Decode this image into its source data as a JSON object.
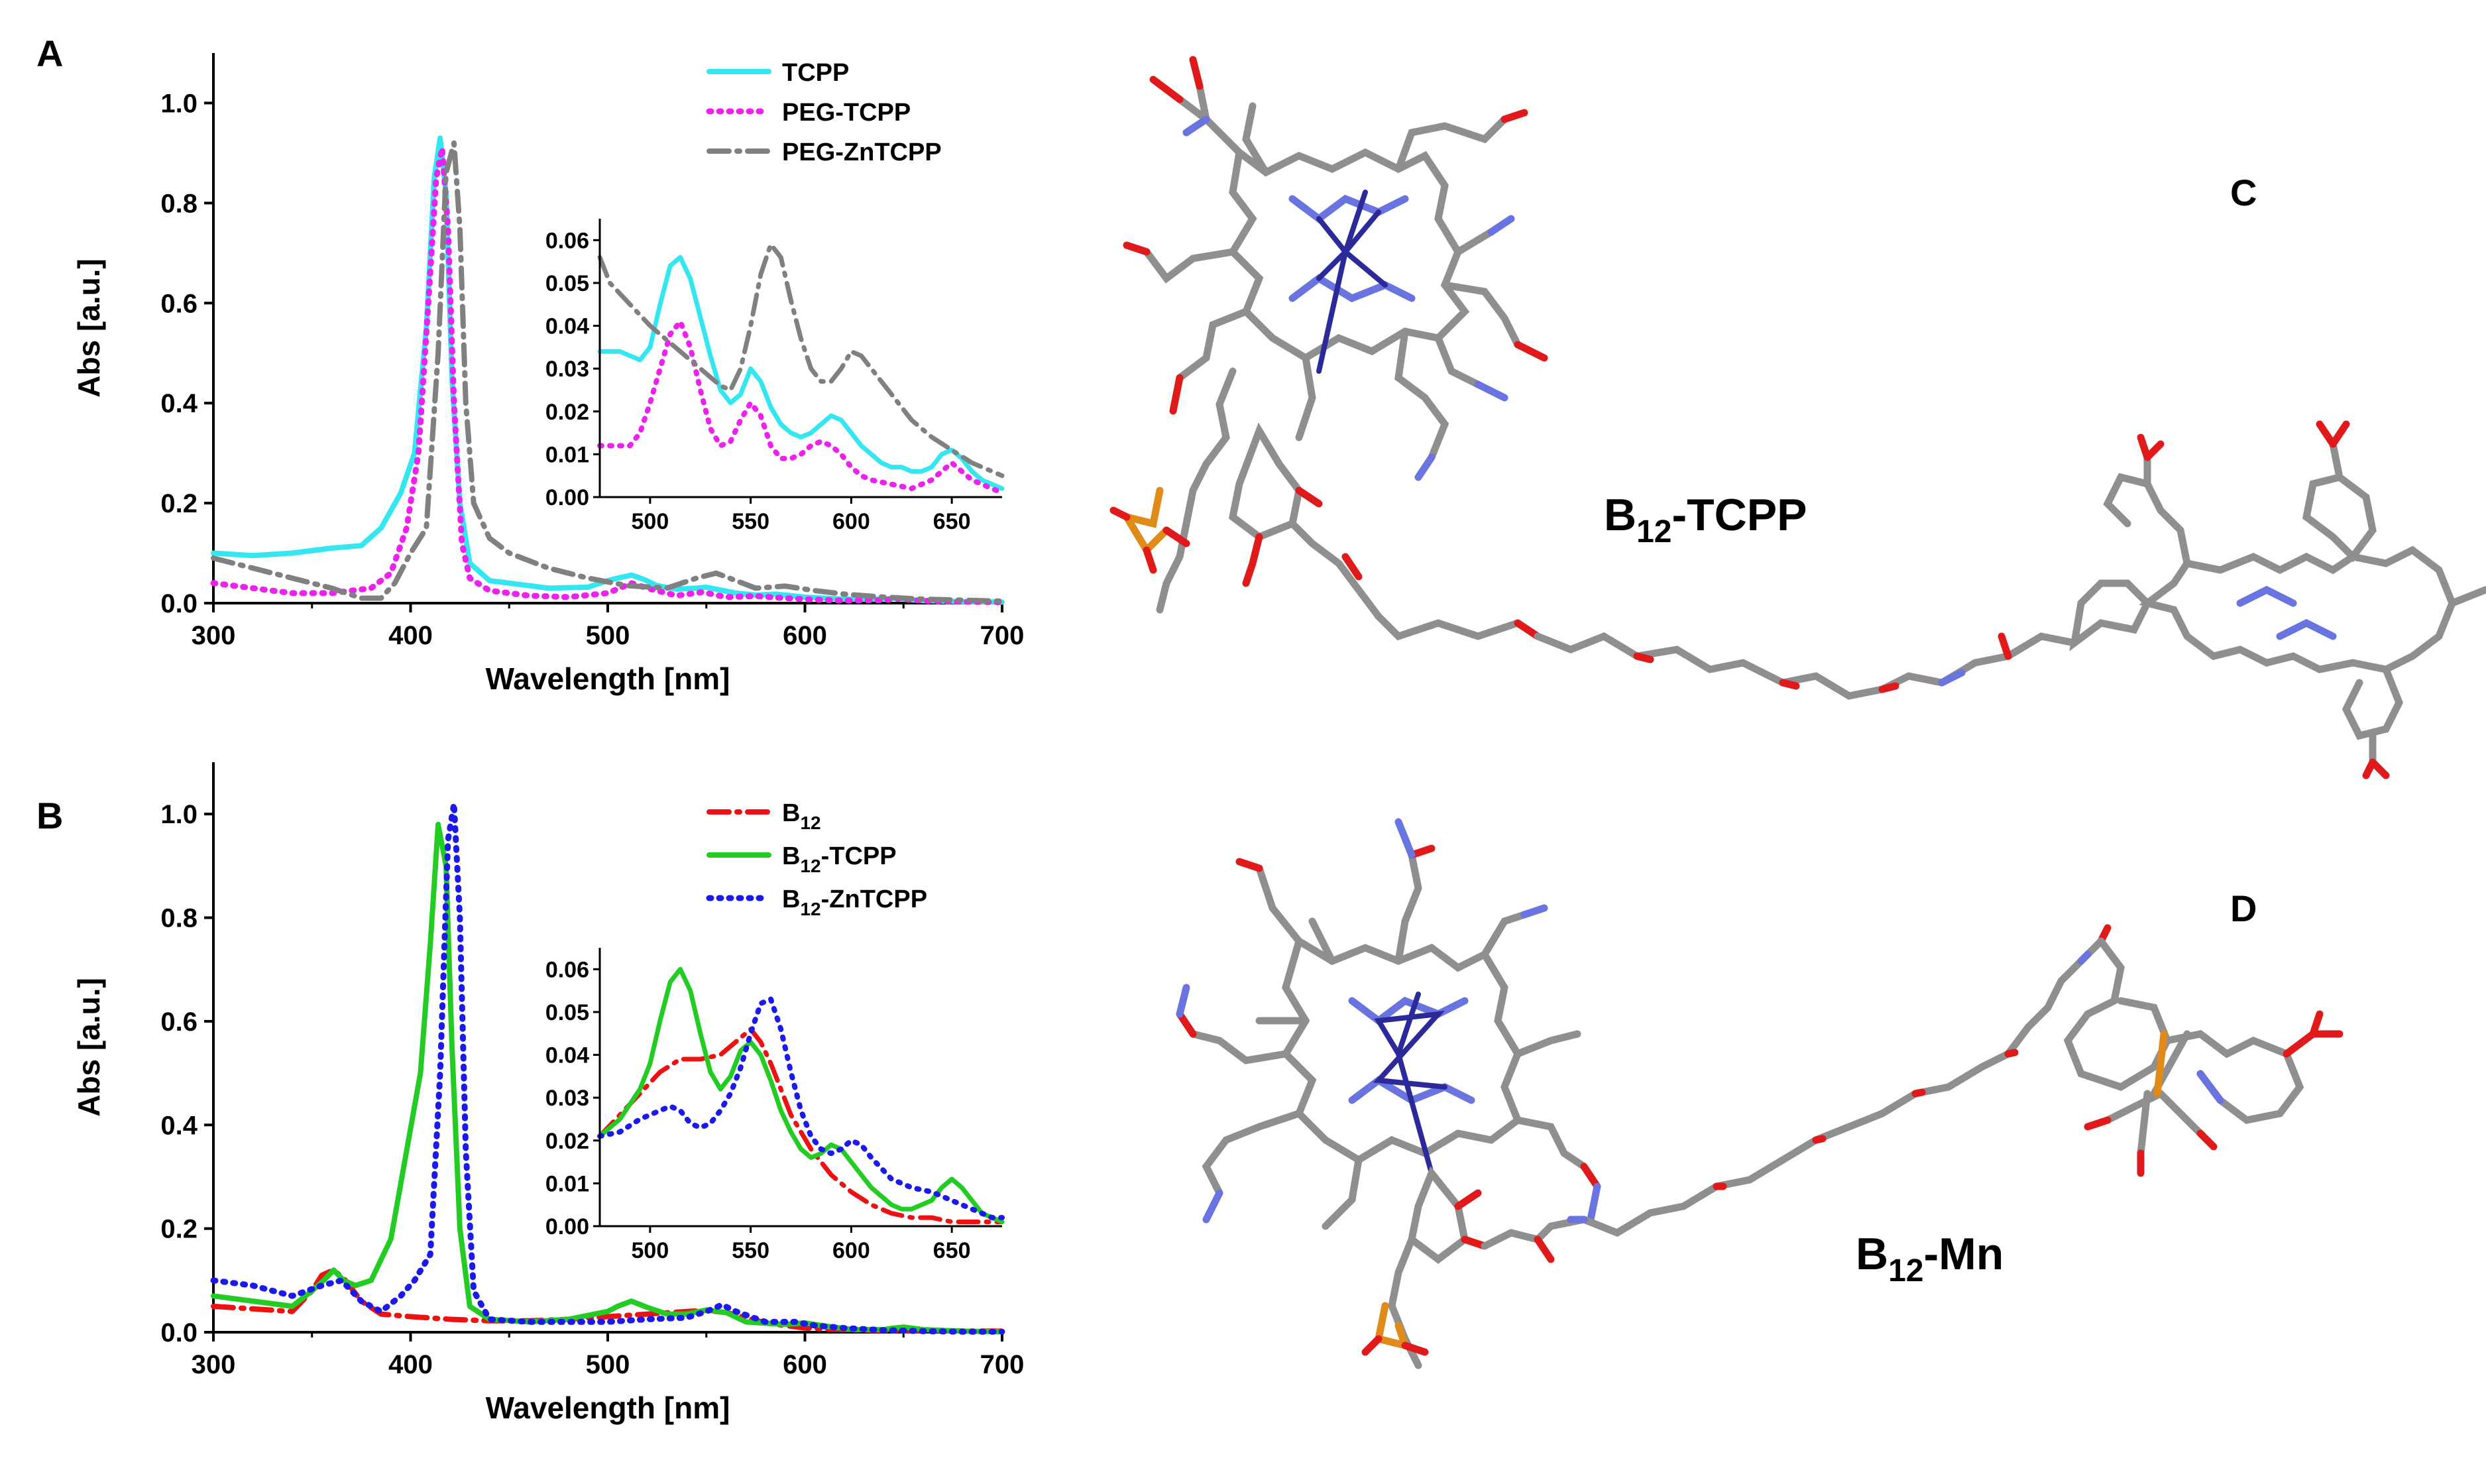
{
  "panels": {
    "A": "A",
    "B": "B",
    "C": "C",
    "D": "D"
  },
  "molecules": {
    "c_label": "B12-TCPP",
    "d_label": "B12-Mn"
  },
  "colors": {
    "TCPP": "#33e6f0",
    "PEG-TCPP": "#ee22ee",
    "PEG-ZnTCPP": "#808080",
    "B12": "#ee1111",
    "B12-TCPP": "#22cc22",
    "B12-ZnTCPP": "#1a1aee"
  },
  "chart_data": [
    {
      "id": "A",
      "type": "line",
      "xlabel": "Wavelength [nm]",
      "ylabel": "Abs [a.u.]",
      "xlim": [
        300,
        700
      ],
      "ylim": [
        0,
        1.1
      ],
      "xticks": [
        300,
        400,
        500,
        600,
        700
      ],
      "yticks": [
        0.0,
        0.2,
        0.4,
        0.6,
        0.8,
        1.0
      ],
      "legend_position": "top-right",
      "series": [
        {
          "name": "TCPP",
          "style": "solid",
          "color": "#33e6f0",
          "x": [
            300,
            320,
            340,
            360,
            375,
            385,
            395,
            402,
            408,
            412,
            415,
            418,
            421,
            425,
            430,
            440,
            450,
            470,
            490,
            500,
            505,
            512,
            518,
            525,
            535,
            545,
            550,
            555,
            565,
            575,
            585,
            590,
            600,
            620,
            640,
            645,
            650,
            660,
            680,
            700
          ],
          "y": [
            0.1,
            0.095,
            0.1,
            0.11,
            0.115,
            0.15,
            0.22,
            0.3,
            0.55,
            0.85,
            0.93,
            0.82,
            0.45,
            0.2,
            0.08,
            0.045,
            0.04,
            0.03,
            0.032,
            0.045,
            0.05,
            0.056,
            0.048,
            0.035,
            0.028,
            0.03,
            0.032,
            0.028,
            0.02,
            0.016,
            0.018,
            0.016,
            0.012,
            0.008,
            0.008,
            0.01,
            0.008,
            0.005,
            0.003,
            0.002
          ]
        },
        {
          "name": "PEG-TCPP",
          "style": "dotted",
          "color": "#ee22ee",
          "x": [
            300,
            320,
            340,
            360,
            380,
            390,
            398,
            404,
            409,
            413,
            416,
            419,
            422,
            426,
            430,
            440,
            460,
            480,
            500,
            512,
            520,
            535,
            548,
            560,
            575,
            590,
            605,
            620,
            640,
            648,
            655,
            670,
            700
          ],
          "y": [
            0.04,
            0.03,
            0.02,
            0.02,
            0.03,
            0.06,
            0.15,
            0.3,
            0.6,
            0.85,
            0.91,
            0.75,
            0.4,
            0.12,
            0.05,
            0.025,
            0.015,
            0.012,
            0.02,
            0.04,
            0.03,
            0.015,
            0.022,
            0.012,
            0.014,
            0.01,
            0.007,
            0.005,
            0.006,
            0.009,
            0.006,
            0.003,
            0.002
          ]
        },
        {
          "name": "PEG-ZnTCPP",
          "style": "dashdot",
          "color": "#808080",
          "x": [
            300,
            330,
            360,
            375,
            385,
            392,
            400,
            408,
            414,
            418,
            422,
            425,
            428,
            432,
            440,
            450,
            470,
            490,
            510,
            530,
            545,
            555,
            565,
            575,
            590,
            605,
            620,
            640,
            660,
            680,
            700
          ],
          "y": [
            0.09,
            0.06,
            0.03,
            0.01,
            0.01,
            0.04,
            0.1,
            0.15,
            0.5,
            0.86,
            0.92,
            0.75,
            0.4,
            0.2,
            0.13,
            0.1,
            0.07,
            0.05,
            0.035,
            0.03,
            0.05,
            0.06,
            0.045,
            0.03,
            0.034,
            0.025,
            0.018,
            0.012,
            0.008,
            0.006,
            0.004
          ]
        }
      ],
      "inset": {
        "xlim": [
          475,
          675
        ],
        "ylim": [
          0,
          0.065
        ],
        "xticks": [
          500,
          550,
          600,
          650
        ],
        "yticks": [
          0.0,
          0.01,
          0.02,
          0.03,
          0.04,
          0.05,
          0.06
        ],
        "series": [
          {
            "name": "TCPP",
            "x": [
              475,
              485,
              495,
              500,
              505,
              510,
              515,
              520,
              525,
              530,
              535,
              540,
              545,
              550,
              555,
              560,
              565,
              570,
              575,
              580,
              585,
              590,
              595,
              600,
              605,
              610,
              615,
              620,
              625,
              630,
              635,
              640,
              645,
              650,
              655,
              660,
              665,
              670,
              675
            ],
            "y": [
              0.034,
              0.034,
              0.032,
              0.035,
              0.045,
              0.054,
              0.056,
              0.051,
              0.042,
              0.033,
              0.025,
              0.022,
              0.024,
              0.03,
              0.027,
              0.021,
              0.017,
              0.015,
              0.014,
              0.015,
              0.017,
              0.019,
              0.018,
              0.015,
              0.012,
              0.01,
              0.008,
              0.007,
              0.007,
              0.006,
              0.006,
              0.007,
              0.01,
              0.011,
              0.009,
              0.006,
              0.004,
              0.003,
              0.002
            ]
          },
          {
            "name": "PEG-TCPP",
            "x": [
              475,
              480,
              490,
              495,
              500,
              505,
              510,
              515,
              520,
              525,
              530,
              535,
              540,
              545,
              550,
              555,
              560,
              565,
              570,
              575,
              580,
              585,
              590,
              595,
              600,
              605,
              610,
              620,
              630,
              640,
              645,
              650,
              655,
              660,
              670,
              675
            ],
            "y": [
              0.012,
              0.012,
              0.012,
              0.015,
              0.022,
              0.03,
              0.038,
              0.041,
              0.035,
              0.025,
              0.016,
              0.012,
              0.013,
              0.018,
              0.022,
              0.019,
              0.012,
              0.009,
              0.009,
              0.01,
              0.012,
              0.013,
              0.012,
              0.01,
              0.007,
              0.005,
              0.004,
              0.003,
              0.002,
              0.004,
              0.006,
              0.008,
              0.006,
              0.004,
              0.002,
              0.001
            ]
          },
          {
            "name": "PEG-ZnTCPP",
            "x": [
              475,
              480,
              490,
              500,
              510,
              520,
              530,
              535,
              540,
              545,
              550,
              555,
              560,
              565,
              570,
              575,
              580,
              585,
              590,
              595,
              600,
              605,
              610,
              620,
              630,
              640,
              650,
              660,
              670,
              675
            ],
            "y": [
              0.056,
              0.05,
              0.045,
              0.04,
              0.036,
              0.032,
              0.028,
              0.026,
              0.025,
              0.03,
              0.04,
              0.052,
              0.059,
              0.056,
              0.046,
              0.037,
              0.03,
              0.027,
              0.027,
              0.03,
              0.034,
              0.033,
              0.03,
              0.024,
              0.018,
              0.014,
              0.011,
              0.008,
              0.006,
              0.005
            ]
          }
        ]
      }
    },
    {
      "id": "B",
      "type": "line",
      "xlabel": "Wavelength [nm]",
      "ylabel": "Abs [a.u.]",
      "xlim": [
        300,
        700
      ],
      "ylim": [
        0,
        1.1
      ],
      "xticks": [
        300,
        400,
        500,
        600,
        700
      ],
      "yticks": [
        0.0,
        0.2,
        0.4,
        0.6,
        0.8,
        1.0
      ],
      "legend_position": "top-right",
      "series": [
        {
          "name": "B12",
          "label_base": "B",
          "label_sub": "12",
          "label_rest": "",
          "style": "dashdot",
          "color": "#ee1111",
          "x": [
            300,
            320,
            340,
            350,
            355,
            361,
            367,
            375,
            385,
            400,
            420,
            440,
            460,
            480,
            500,
            520,
            540,
            550,
            560,
            580,
            600,
            620,
            650,
            700
          ],
          "y": [
            0.05,
            0.045,
            0.04,
            0.08,
            0.11,
            0.12,
            0.1,
            0.06,
            0.035,
            0.03,
            0.025,
            0.022,
            0.022,
            0.025,
            0.03,
            0.035,
            0.04,
            0.042,
            0.038,
            0.018,
            0.008,
            0.005,
            0.003,
            0.002
          ]
        },
        {
          "name": "B12-TCPP",
          "label_base": "B",
          "label_sub": "12",
          "label_rest": "-TCPP",
          "style": "solid",
          "color": "#22cc22",
          "x": [
            300,
            320,
            340,
            350,
            356,
            361,
            366,
            372,
            380,
            390,
            398,
            405,
            410,
            414,
            418,
            421,
            425,
            430,
            440,
            460,
            480,
            500,
            505,
            512,
            520,
            530,
            540,
            550,
            560,
            570,
            590,
            600,
            610,
            625,
            640,
            645,
            650,
            660,
            680,
            700
          ],
          "y": [
            0.07,
            0.06,
            0.05,
            0.08,
            0.1,
            0.12,
            0.1,
            0.09,
            0.1,
            0.18,
            0.35,
            0.5,
            0.75,
            0.98,
            0.9,
            0.55,
            0.2,
            0.05,
            0.025,
            0.02,
            0.025,
            0.04,
            0.05,
            0.06,
            0.048,
            0.035,
            0.035,
            0.043,
            0.038,
            0.02,
            0.015,
            0.018,
            0.012,
            0.005,
            0.005,
            0.008,
            0.01,
            0.005,
            0.002,
            0.001
          ]
        },
        {
          "name": "B12-ZnTCPP",
          "label_base": "B",
          "label_sub": "12",
          "label_rest": "-ZnTCPP",
          "style": "dotted",
          "color": "#1a1aee",
          "x": [
            300,
            320,
            340,
            355,
            365,
            375,
            385,
            395,
            402,
            410,
            415,
            419,
            422,
            425,
            428,
            432,
            440,
            460,
            500,
            520,
            540,
            550,
            558,
            565,
            580,
            595,
            605,
            620,
            640,
            660,
            680,
            700
          ],
          "y": [
            0.1,
            0.09,
            0.07,
            0.09,
            0.1,
            0.06,
            0.04,
            0.07,
            0.1,
            0.15,
            0.5,
            0.95,
            1.02,
            0.8,
            0.35,
            0.08,
            0.025,
            0.02,
            0.02,
            0.025,
            0.028,
            0.04,
            0.053,
            0.04,
            0.02,
            0.02,
            0.013,
            0.008,
            0.004,
            0.002,
            0.001,
            0.001
          ]
        }
      ],
      "inset": {
        "xlim": [
          475,
          675
        ],
        "ylim": [
          0,
          0.065
        ],
        "xticks": [
          500,
          550,
          600,
          650
        ],
        "yticks": [
          0.0,
          0.01,
          0.02,
          0.03,
          0.04,
          0.05,
          0.06
        ],
        "series": [
          {
            "name": "B12",
            "x": [
              475,
              485,
              495,
              505,
              515,
              525,
              535,
              545,
              550,
              555,
              560,
              565,
              570,
              575,
              580,
              590,
              600,
              610,
              620,
              630,
              640,
              650,
              660,
              675
            ],
            "y": [
              0.021,
              0.026,
              0.031,
              0.036,
              0.039,
              0.039,
              0.04,
              0.044,
              0.046,
              0.043,
              0.038,
              0.032,
              0.026,
              0.022,
              0.018,
              0.012,
              0.008,
              0.005,
              0.003,
              0.002,
              0.002,
              0.001,
              0.001,
              0.001
            ]
          },
          {
            "name": "B12-TCPP",
            "x": [
              475,
              485,
              495,
              500,
              505,
              510,
              515,
              520,
              525,
              530,
              535,
              540,
              545,
              550,
              555,
              560,
              565,
              570,
              575,
              580,
              585,
              590,
              595,
              600,
              605,
              610,
              615,
              620,
              625,
              630,
              635,
              640,
              645,
              650,
              655,
              660,
              665,
              670,
              675
            ],
            "y": [
              0.021,
              0.025,
              0.032,
              0.038,
              0.048,
              0.057,
              0.06,
              0.055,
              0.045,
              0.036,
              0.032,
              0.035,
              0.041,
              0.043,
              0.04,
              0.034,
              0.027,
              0.022,
              0.018,
              0.016,
              0.017,
              0.019,
              0.018,
              0.015,
              0.012,
              0.009,
              0.007,
              0.005,
              0.004,
              0.004,
              0.005,
              0.006,
              0.009,
              0.011,
              0.009,
              0.006,
              0.003,
              0.002,
              0.001
            ]
          },
          {
            "name": "B12-ZnTCPP",
            "x": [
              475,
              485,
              495,
              505,
              510,
              515,
              520,
              525,
              530,
              535,
              540,
              545,
              550,
              555,
              560,
              565,
              570,
              575,
              580,
              585,
              590,
              595,
              600,
              605,
              610,
              620,
              630,
              640,
              650,
              660,
              670,
              675
            ],
            "y": [
              0.021,
              0.022,
              0.025,
              0.027,
              0.028,
              0.027,
              0.024,
              0.023,
              0.024,
              0.027,
              0.031,
              0.037,
              0.045,
              0.052,
              0.053,
              0.046,
              0.036,
              0.027,
              0.021,
              0.018,
              0.017,
              0.018,
              0.02,
              0.019,
              0.016,
              0.011,
              0.009,
              0.008,
              0.006,
              0.004,
              0.002,
              0.002
            ]
          }
        ]
      }
    }
  ]
}
